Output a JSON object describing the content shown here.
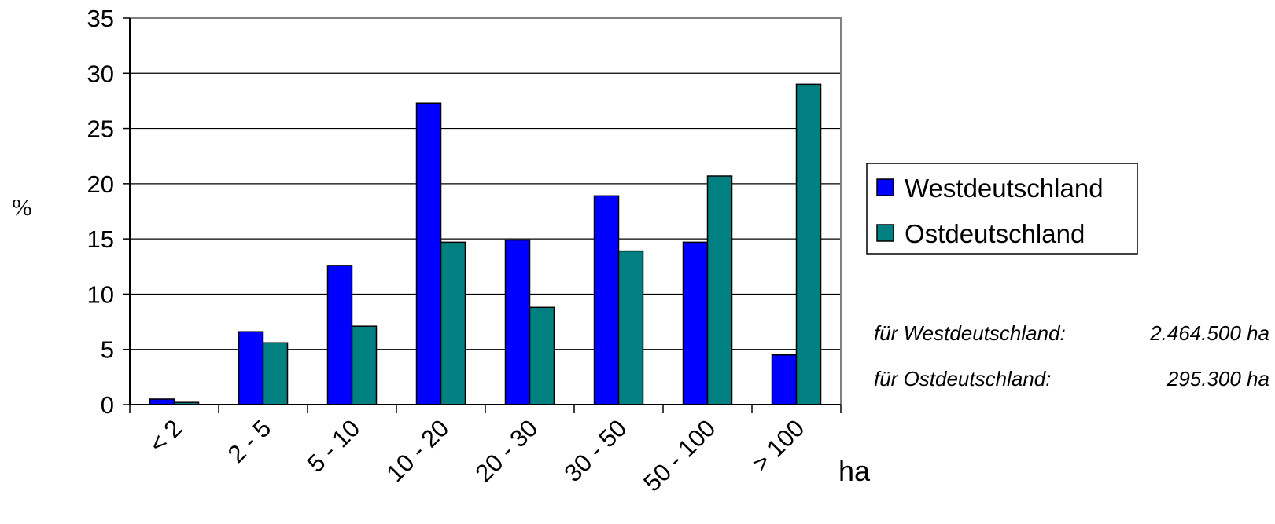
{
  "chart_data": {
    "type": "bar",
    "title": "",
    "xlabel": "ha",
    "ylabel": "%",
    "ylim": [
      0,
      35
    ],
    "yticks": [
      0,
      5,
      10,
      15,
      20,
      25,
      30,
      35
    ],
    "grid": true,
    "legend_position": "right",
    "categories": [
      "< 2",
      "2 - 5",
      "5 - 10",
      "10 - 20",
      "20 - 30",
      "30 - 50",
      "50 - 100",
      "> 100"
    ],
    "series": [
      {
        "name": "Westdeutschland",
        "color": "#0000ff",
        "values": [
          0.5,
          6.6,
          12.6,
          27.3,
          14.9,
          18.9,
          14.7,
          4.5
        ]
      },
      {
        "name": "Ostdeutschland",
        "color": "#008080",
        "values": [
          0.2,
          5.6,
          7.1,
          14.7,
          8.8,
          13.9,
          20.7,
          29.0
        ]
      }
    ],
    "annotations": [
      {
        "label": "für Westdeutschland:",
        "value": "2.464.500 ha"
      },
      {
        "label": "für Ostdeutschland:",
        "value": "295.300 ha"
      }
    ]
  }
}
